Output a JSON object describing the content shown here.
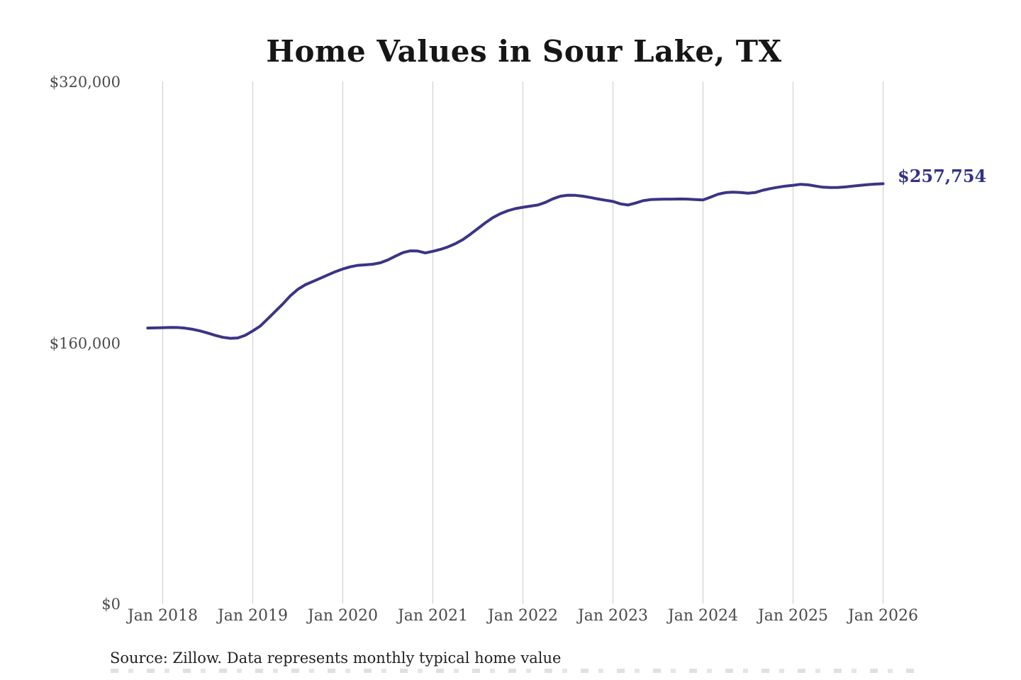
{
  "chart_data": {
    "type": "line",
    "title": "Home Values in Sour Lake, TX",
    "xlabel": "",
    "ylabel": "",
    "ylim": [
      0,
      320000
    ],
    "grid": "vertical",
    "grid_color": "#cbcbcb",
    "background_color": "#ffffff",
    "x_tick_labels": [
      "Jan 2018",
      "Jan 2019",
      "Jan 2020",
      "Jan 2021",
      "Jan 2022",
      "Jan 2023",
      "Jan 2024",
      "Jan 2025",
      "Jan 2026"
    ],
    "y_tick_labels": [
      "$320,000",
      "$160,000",
      "$0"
    ],
    "y_tick_values": [
      320000,
      160000,
      0
    ],
    "end_label": "$257,754",
    "end_value": 257754,
    "series": [
      {
        "name": "Monthly typical home value",
        "color": "#3b3486",
        "start": "Nov 2017",
        "end": "Jan 2026",
        "interval": "monthly",
        "values": [
          169300,
          169400,
          169500,
          169700,
          169600,
          169200,
          168500,
          167500,
          166200,
          164800,
          163600,
          163000,
          163200,
          164800,
          167500,
          170500,
          175000,
          179500,
          184000,
          189000,
          193000,
          195800,
          197800,
          199800,
          201800,
          203800,
          205500,
          206800,
          207700,
          208000,
          208400,
          209300,
          211000,
          213300,
          215500,
          216600,
          216500,
          215300,
          216300,
          217500,
          219000,
          221000,
          223500,
          226800,
          230300,
          233800,
          237000,
          239400,
          241200,
          242500,
          243300,
          244000,
          244700,
          246300,
          248500,
          250100,
          250700,
          250600,
          250100,
          249300,
          248400,
          247600,
          246900,
          245400,
          244700,
          245900,
          247300,
          248000,
          248200,
          248300,
          248300,
          248400,
          248300,
          248000,
          247800,
          249500,
          251300,
          252300,
          252600,
          252400,
          251900,
          252400,
          253800,
          254800,
          255600,
          256300,
          256800,
          257400,
          257100,
          256300,
          255600,
          255400,
          255500,
          255800,
          256300,
          256800,
          257200,
          257500,
          257754
        ]
      }
    ]
  },
  "footer": {
    "source": "Source: Zillow. Data represents monthly typical home value"
  }
}
